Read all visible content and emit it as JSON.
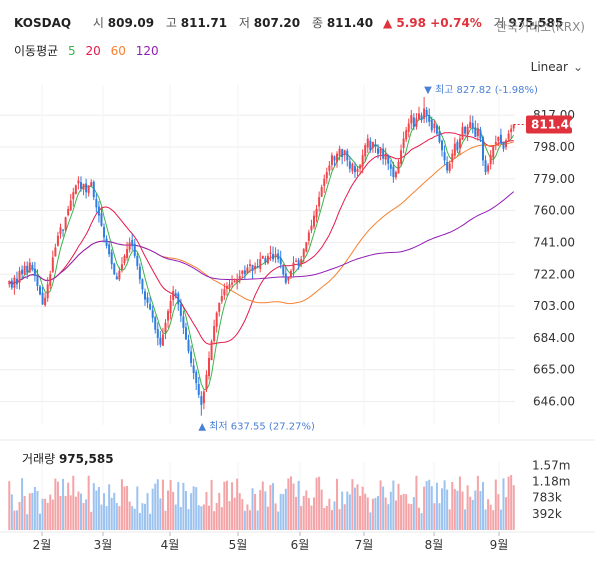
{
  "header": {
    "symbol": "KOSDAQ",
    "open_label": "시",
    "open": "809.09",
    "high_label": "고",
    "high": "811.71",
    "low_label": "저",
    "low": "807.20",
    "close_label": "종",
    "close": "811.40",
    "change": "▲ 5.98 +0.74%",
    "volume_label": "거",
    "volume": "975,585",
    "exchange": "한국거래소(KRX)"
  },
  "moving_average": {
    "label": "이동평균",
    "periods": [
      {
        "value": "5",
        "color": "#3cb44b"
      },
      {
        "value": "20",
        "color": "#e6194b"
      },
      {
        "value": "60",
        "color": "#f58231"
      },
      {
        "value": "120",
        "color": "#911eb4"
      }
    ]
  },
  "scale_mode": {
    "label": "Linear",
    "icon": "chevron-down-icon"
  },
  "volume_panel": {
    "label": "거래량",
    "value": "975,585"
  },
  "colors": {
    "up": "#f0454a",
    "down": "#2f7de1",
    "up_vol": "#f4a3a6",
    "down_vol": "#9cc3f0"
  },
  "chart_data": {
    "type": "candlestick",
    "x_tick_labels": [
      "2월",
      "3월",
      "4월",
      "5월",
      "6월",
      "7월",
      "8월",
      "9월"
    ],
    "y_ticks": [
      646.0,
      665.0,
      684.0,
      703.0,
      722.0,
      741.0,
      760.0,
      779.0,
      798.0,
      817.0
    ],
    "y_tick_labels": [
      "646.00",
      "665.00",
      "684.00",
      "703.00",
      "722.00",
      "741.00",
      "760.00",
      "779.00",
      "798.00",
      "817.00"
    ],
    "ylim": [
      632,
      835
    ],
    "last_price": 811.4,
    "last_price_label": "811.40",
    "max_marker": {
      "value": 827.82,
      "label": "▼ 최고 827.82 (-1.98%)"
    },
    "min_marker": {
      "value": 637.55,
      "label": "▲ 최저 637.55 (27.27%)"
    },
    "closes": [
      718,
      714,
      720,
      716,
      724,
      722,
      727,
      723,
      729,
      725,
      721,
      715,
      710,
      704,
      708,
      716,
      722,
      732,
      738,
      745,
      750,
      748,
      756,
      761,
      766,
      771,
      775,
      778,
      773,
      776,
      771,
      775,
      777,
      768,
      762,
      757,
      751,
      744,
      739,
      734,
      728,
      722,
      719,
      724,
      728,
      733,
      737,
      741,
      739,
      733,
      727,
      719,
      713,
      707,
      705,
      701,
      696,
      689,
      684,
      680,
      686,
      693,
      700,
      706,
      712,
      709,
      704,
      697,
      690,
      683,
      676,
      669,
      663,
      657,
      650,
      644,
      652,
      662,
      672,
      682,
      691,
      699,
      705,
      709,
      713,
      715,
      716,
      717,
      718,
      719,
      721,
      724,
      722,
      726,
      728,
      724,
      727,
      726,
      731,
      733,
      729,
      733,
      735,
      731,
      734,
      731,
      728,
      722,
      717,
      720,
      724,
      729,
      730,
      727,
      731,
      737,
      741,
      747,
      751,
      757,
      761,
      768,
      774,
      779,
      783,
      787,
      793,
      790,
      794,
      797,
      792,
      796,
      790,
      785,
      788,
      783,
      785,
      787,
      793,
      799,
      803,
      796,
      801,
      798,
      794,
      797,
      791,
      794,
      788,
      785,
      780,
      783,
      789,
      796,
      803,
      808,
      812,
      817,
      810,
      815,
      818,
      814,
      821,
      817,
      813,
      808,
      812,
      806,
      801,
      796,
      790,
      784,
      788,
      794,
      800,
      796,
      803,
      810,
      806,
      810,
      813,
      809,
      804,
      809,
      803,
      790,
      783,
      787,
      793,
      799,
      801,
      804,
      800,
      797,
      802,
      806,
      809,
      811.4
    ],
    "volume_axis": {
      "ticks": [
        392000,
        783000,
        1180000,
        1570000
      ],
      "labels": [
        "392k",
        "783k",
        "1.18m",
        "1.57m"
      ]
    },
    "volume_max": 1650000
  }
}
